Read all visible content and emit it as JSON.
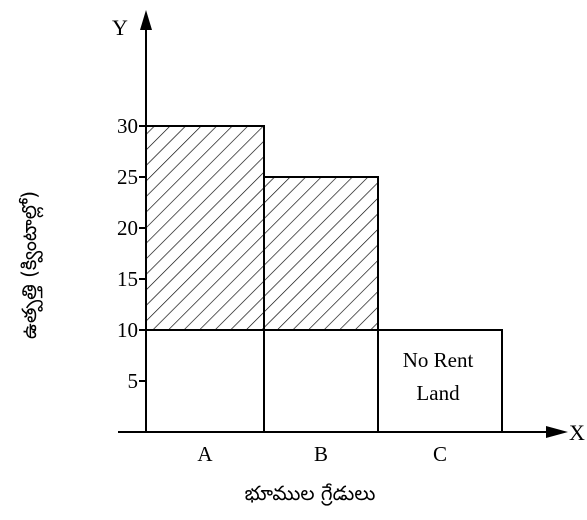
{
  "chart_data": {
    "type": "bar",
    "title": "",
    "xlabel": "భూముల గ్రేడులు",
    "ylabel": "ఉత్పత్తి (క్వింటాల్లో)",
    "x_axis_letter": "X",
    "y_axis_letter": "Y",
    "categories": [
      "A",
      "B",
      "C"
    ],
    "values": [
      30,
      25,
      10
    ],
    "rent_baseline": 10,
    "y_ticks": [
      5,
      10,
      15,
      20,
      25,
      30
    ],
    "ylim": [
      0,
      35
    ],
    "grid": false,
    "legend": "none",
    "annotation": [
      "No Rent",
      "Land"
    ],
    "shaded_region": "area above 10 for A and B (economic rent)"
  }
}
